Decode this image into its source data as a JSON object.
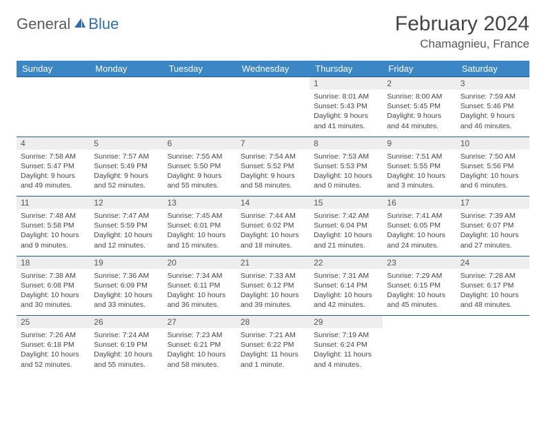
{
  "brand": {
    "part1": "General",
    "part2": "Blue"
  },
  "title": "February 2024",
  "location": "Chamagnieu, France",
  "colors": {
    "header_bg": "#3b86c4",
    "header_text": "#ffffff",
    "daynum_bg": "#eeeeee",
    "border": "#2a5a8a",
    "brand_gray": "#5a5a5a",
    "brand_blue": "#2f6fa8"
  },
  "day_headers": [
    "Sunday",
    "Monday",
    "Tuesday",
    "Wednesday",
    "Thursday",
    "Friday",
    "Saturday"
  ],
  "weeks": [
    [
      null,
      null,
      null,
      null,
      {
        "n": "1",
        "sr": "8:01 AM",
        "ss": "5:43 PM",
        "dl": "9 hours and 41 minutes."
      },
      {
        "n": "2",
        "sr": "8:00 AM",
        "ss": "5:45 PM",
        "dl": "9 hours and 44 minutes."
      },
      {
        "n": "3",
        "sr": "7:59 AM",
        "ss": "5:46 PM",
        "dl": "9 hours and 46 minutes."
      }
    ],
    [
      {
        "n": "4",
        "sr": "7:58 AM",
        "ss": "5:47 PM",
        "dl": "9 hours and 49 minutes."
      },
      {
        "n": "5",
        "sr": "7:57 AM",
        "ss": "5:49 PM",
        "dl": "9 hours and 52 minutes."
      },
      {
        "n": "6",
        "sr": "7:55 AM",
        "ss": "5:50 PM",
        "dl": "9 hours and 55 minutes."
      },
      {
        "n": "7",
        "sr": "7:54 AM",
        "ss": "5:52 PM",
        "dl": "9 hours and 58 minutes."
      },
      {
        "n": "8",
        "sr": "7:53 AM",
        "ss": "5:53 PM",
        "dl": "10 hours and 0 minutes."
      },
      {
        "n": "9",
        "sr": "7:51 AM",
        "ss": "5:55 PM",
        "dl": "10 hours and 3 minutes."
      },
      {
        "n": "10",
        "sr": "7:50 AM",
        "ss": "5:56 PM",
        "dl": "10 hours and 6 minutes."
      }
    ],
    [
      {
        "n": "11",
        "sr": "7:48 AM",
        "ss": "5:58 PM",
        "dl": "10 hours and 9 minutes."
      },
      {
        "n": "12",
        "sr": "7:47 AM",
        "ss": "5:59 PM",
        "dl": "10 hours and 12 minutes."
      },
      {
        "n": "13",
        "sr": "7:45 AM",
        "ss": "6:01 PM",
        "dl": "10 hours and 15 minutes."
      },
      {
        "n": "14",
        "sr": "7:44 AM",
        "ss": "6:02 PM",
        "dl": "10 hours and 18 minutes."
      },
      {
        "n": "15",
        "sr": "7:42 AM",
        "ss": "6:04 PM",
        "dl": "10 hours and 21 minutes."
      },
      {
        "n": "16",
        "sr": "7:41 AM",
        "ss": "6:05 PM",
        "dl": "10 hours and 24 minutes."
      },
      {
        "n": "17",
        "sr": "7:39 AM",
        "ss": "6:07 PM",
        "dl": "10 hours and 27 minutes."
      }
    ],
    [
      {
        "n": "18",
        "sr": "7:38 AM",
        "ss": "6:08 PM",
        "dl": "10 hours and 30 minutes."
      },
      {
        "n": "19",
        "sr": "7:36 AM",
        "ss": "6:09 PM",
        "dl": "10 hours and 33 minutes."
      },
      {
        "n": "20",
        "sr": "7:34 AM",
        "ss": "6:11 PM",
        "dl": "10 hours and 36 minutes."
      },
      {
        "n": "21",
        "sr": "7:33 AM",
        "ss": "6:12 PM",
        "dl": "10 hours and 39 minutes."
      },
      {
        "n": "22",
        "sr": "7:31 AM",
        "ss": "6:14 PM",
        "dl": "10 hours and 42 minutes."
      },
      {
        "n": "23",
        "sr": "7:29 AM",
        "ss": "6:15 PM",
        "dl": "10 hours and 45 minutes."
      },
      {
        "n": "24",
        "sr": "7:28 AM",
        "ss": "6:17 PM",
        "dl": "10 hours and 48 minutes."
      }
    ],
    [
      {
        "n": "25",
        "sr": "7:26 AM",
        "ss": "6:18 PM",
        "dl": "10 hours and 52 minutes."
      },
      {
        "n": "26",
        "sr": "7:24 AM",
        "ss": "6:19 PM",
        "dl": "10 hours and 55 minutes."
      },
      {
        "n": "27",
        "sr": "7:23 AM",
        "ss": "6:21 PM",
        "dl": "10 hours and 58 minutes."
      },
      {
        "n": "28",
        "sr": "7:21 AM",
        "ss": "6:22 PM",
        "dl": "11 hours and 1 minute."
      },
      {
        "n": "29",
        "sr": "7:19 AM",
        "ss": "6:24 PM",
        "dl": "11 hours and 4 minutes."
      },
      null,
      null
    ]
  ],
  "labels": {
    "sunrise": "Sunrise:",
    "sunset": "Sunset:",
    "daylight": "Daylight:"
  }
}
